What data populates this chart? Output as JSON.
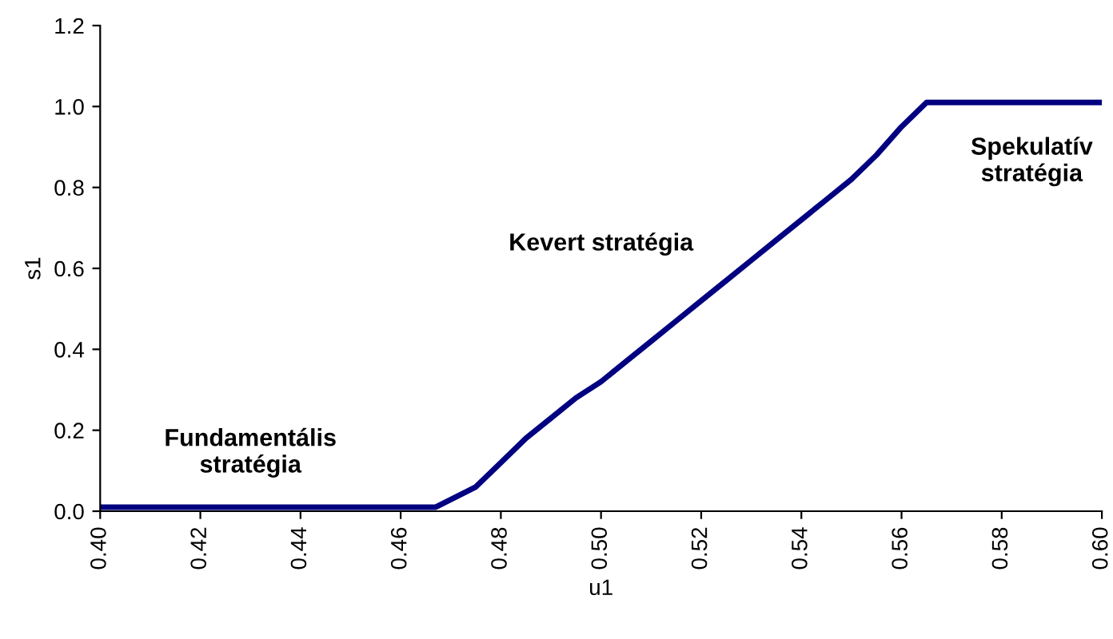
{
  "chart_data": {
    "type": "line",
    "xlabel": "u1",
    "ylabel": "s1",
    "x": [
      0.4,
      0.42,
      0.44,
      0.46,
      0.467,
      0.475,
      0.48,
      0.485,
      0.49,
      0.495,
      0.5,
      0.505,
      0.51,
      0.515,
      0.52,
      0.525,
      0.53,
      0.535,
      0.54,
      0.545,
      0.55,
      0.555,
      0.56,
      0.565,
      0.58,
      0.6
    ],
    "series": [
      {
        "color": "#000080",
        "values": [
          0.01,
          0.01,
          0.01,
          0.01,
          0.01,
          0.06,
          0.12,
          0.18,
          0.23,
          0.28,
          0.32,
          0.37,
          0.42,
          0.47,
          0.52,
          0.57,
          0.62,
          0.67,
          0.72,
          0.77,
          0.82,
          0.88,
          0.95,
          1.01,
          1.01,
          1.01
        ]
      }
    ],
    "xlim": [
      0.4,
      0.6
    ],
    "ylim": [
      0.0,
      1.2
    ],
    "xticks": [
      {
        "value": 0.4,
        "label": "0.40"
      },
      {
        "value": 0.42,
        "label": "0.42"
      },
      {
        "value": 0.44,
        "label": "0.44"
      },
      {
        "value": 0.46,
        "label": "0.46"
      },
      {
        "value": 0.48,
        "label": "0.48"
      },
      {
        "value": 0.5,
        "label": "0.50"
      },
      {
        "value": 0.52,
        "label": "0.52"
      },
      {
        "value": 0.54,
        "label": "0.54"
      },
      {
        "value": 0.56,
        "label": "0.56"
      },
      {
        "value": 0.58,
        "label": "0.58"
      },
      {
        "value": 0.6,
        "label": "0.60"
      }
    ],
    "yticks": [
      {
        "value": 0.0,
        "label": "0.0"
      },
      {
        "value": 0.2,
        "label": "0.2"
      },
      {
        "value": 0.4,
        "label": "0.4"
      },
      {
        "value": 0.6,
        "label": "0.6"
      },
      {
        "value": 0.8,
        "label": "0.8"
      },
      {
        "value": 1.0,
        "label": "1.0"
      },
      {
        "value": 1.2,
        "label": "1.2"
      }
    ],
    "grid": false,
    "legend": false,
    "marker": "none",
    "line_style": "solid",
    "annotations": [
      "Fundamentális\nstratégia",
      "Kevert stratégia",
      "Spekulatív\nstratégia"
    ]
  }
}
